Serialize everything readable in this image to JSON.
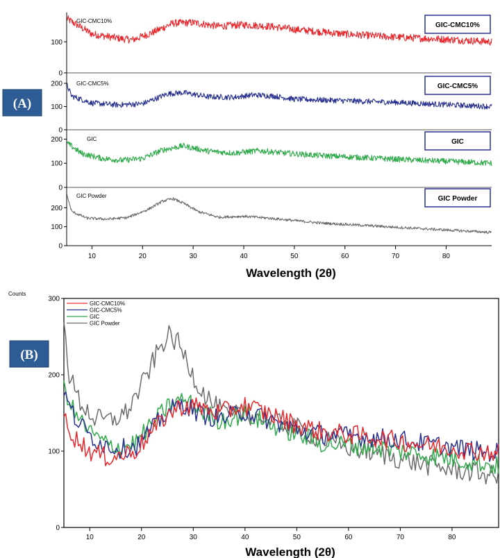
{
  "chart_data": [
    {
      "type": "line",
      "panel_label": "(A)",
      "xlabel": "Wavelength (2θ)",
      "xlim": [
        5,
        89
      ],
      "xticks": [
        10,
        20,
        30,
        40,
        50,
        60,
        70,
        80
      ],
      "series": [
        {
          "name": "GIC-CMC10%",
          "box_label": "GIC-CMC10%",
          "color": "#e8262b",
          "ylim": [
            0,
            190
          ],
          "yticks": [
            0,
            100
          ],
          "x": [
            5,
            10,
            15,
            18,
            22,
            26,
            30,
            35,
            40,
            45,
            50,
            60,
            70,
            80,
            89
          ],
          "y": [
            175,
            125,
            112,
            106,
            130,
            160,
            162,
            150,
            155,
            150,
            140,
            125,
            115,
            108,
            100
          ]
        },
        {
          "name": "GIC-CMC5%",
          "box_label": "GIC-CMC5%",
          "color": "#28318f",
          "ylim": [
            0,
            230
          ],
          "yticks": [
            0,
            100,
            200
          ],
          "x": [
            5,
            6,
            10,
            15,
            20,
            25,
            28,
            33,
            38,
            42,
            46,
            50,
            60,
            70,
            80,
            89
          ],
          "y": [
            195,
            145,
            115,
            107,
            112,
            155,
            160,
            142,
            140,
            150,
            145,
            132,
            125,
            118,
            108,
            100
          ]
        },
        {
          "name": "GIC",
          "box_label": "GIC",
          "color": "#2faa4a",
          "ylim": [
            0,
            230
          ],
          "yticks": [
            0,
            100,
            200
          ],
          "x": [
            5,
            8,
            12,
            16,
            20,
            24,
            28,
            33,
            38,
            43,
            48,
            55,
            65,
            75,
            85,
            89
          ],
          "y": [
            185,
            140,
            120,
            112,
            120,
            155,
            172,
            150,
            142,
            152,
            142,
            132,
            122,
            112,
            104,
            100
          ]
        },
        {
          "name": "GIC Powder",
          "box_label": "GIC Powder",
          "color": "#6b6b6b",
          "ylim": [
            0,
            300
          ],
          "yticks": [
            0,
            100,
            200
          ],
          "x": [
            5,
            6,
            9,
            13,
            17,
            21,
            24,
            26,
            28,
            31,
            35,
            40,
            45,
            55,
            65,
            75,
            89
          ],
          "y": [
            270,
            180,
            145,
            140,
            148,
            190,
            235,
            248,
            225,
            180,
            150,
            155,
            145,
            120,
            105,
            90,
            70
          ]
        }
      ]
    },
    {
      "type": "line",
      "panel_label": "(B)",
      "ylabel": "Counts",
      "xlabel": "Wavelength (2θ)",
      "xlim": [
        5,
        89
      ],
      "ylim": [
        0,
        300
      ],
      "xticks": [
        10,
        20,
        30,
        40,
        50,
        60,
        70,
        80
      ],
      "yticks": [
        0,
        100,
        200,
        300
      ],
      "legend_position": "top-left",
      "series": [
        {
          "name": "GIC Powder",
          "color": "#6b6b6b",
          "x": [
            5,
            6,
            8,
            11,
            14,
            17,
            20,
            23,
            25,
            27,
            29,
            31,
            34,
            37,
            40,
            45,
            50,
            55,
            60,
            65,
            70,
            75,
            80,
            85,
            89
          ],
          "y": [
            280,
            200,
            165,
            142,
            140,
            150,
            185,
            228,
            252,
            242,
            215,
            185,
            160,
            145,
            150,
            140,
            130,
            115,
            105,
            98,
            90,
            82,
            76,
            72,
            66
          ]
        },
        {
          "name": "GIC",
          "color": "#2faa4a",
          "x": [
            5,
            7,
            10,
            13,
            16,
            19,
            22,
            25,
            28,
            31,
            35,
            40,
            45,
            50,
            55,
            60,
            65,
            70,
            75,
            80,
            85,
            89
          ],
          "y": [
            185,
            150,
            125,
            110,
            105,
            112,
            135,
            158,
            168,
            155,
            140,
            148,
            135,
            122,
            110,
            108,
            105,
            100,
            95,
            90,
            85,
            80
          ]
        },
        {
          "name": "GIC-CMC5%",
          "color": "#28318f",
          "x": [
            5,
            7,
            10,
            13,
            16,
            19,
            22,
            25,
            28,
            31,
            35,
            40,
            45,
            50,
            55,
            60,
            65,
            70,
            75,
            80,
            85,
            89
          ],
          "y": [
            175,
            145,
            120,
            108,
            103,
            107,
            128,
            152,
            162,
            150,
            142,
            152,
            140,
            128,
            122,
            120,
            118,
            115,
            110,
            105,
            100,
            98
          ]
        },
        {
          "name": "GIC-CMC10%",
          "color": "#e8262b",
          "x": [
            5,
            7,
            10,
            13,
            16,
            19,
            22,
            25,
            28,
            31,
            35,
            40,
            45,
            50,
            55,
            60,
            65,
            70,
            75,
            80,
            85,
            89
          ],
          "y": [
            145,
            118,
            100,
            92,
            94,
            102,
            125,
            148,
            160,
            158,
            150,
            160,
            148,
            135,
            125,
            122,
            118,
            113,
            108,
            104,
            100,
            98
          ]
        }
      ]
    }
  ]
}
